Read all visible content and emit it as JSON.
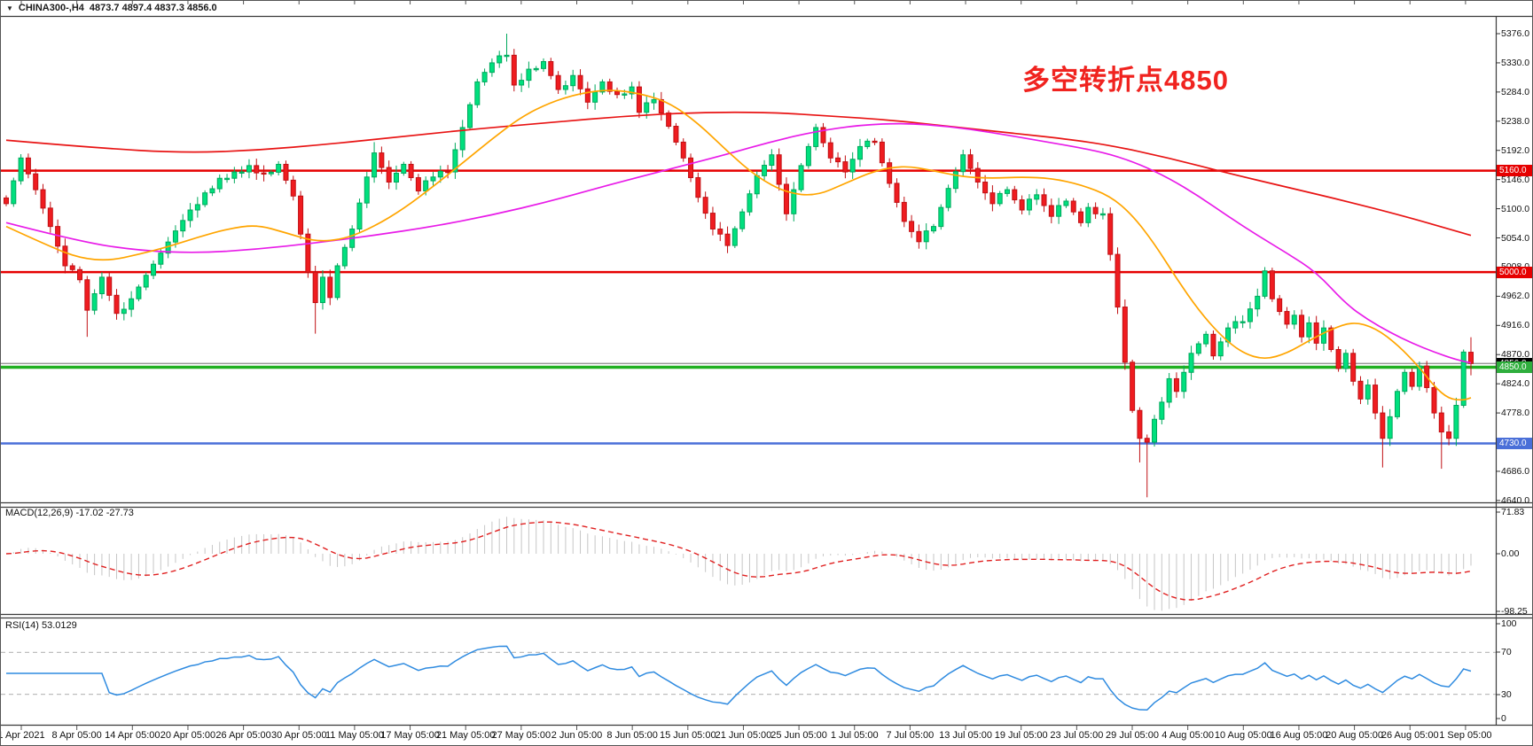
{
  "header": {
    "symbol": "CHINA300-,H4",
    "ohlc_text": "4873.7 4897.4 4837.3 4856.0",
    "dropdown_icon": "triangle-down"
  },
  "annotation": {
    "text": "多空转折点4850",
    "color": "#f0231f"
  },
  "colors": {
    "bull_fill": "#00e07e",
    "bull_border": "#00a85c",
    "bear_fill": "#ef1c20",
    "bear_border": "#c01014",
    "ma_red": "#e81414",
    "ma_magenta": "#e81ce8",
    "ma_orange": "#ffa500",
    "hist": "#c6c6c6",
    "macd_signal": "#e02020",
    "rsi_line": "#2f8be0",
    "level_dash": "#bdbdbd",
    "axis_text": "#111111",
    "border": "#3a3a3a",
    "bid_line": "#8a8a8a"
  },
  "price_axis": {
    "ticks": [
      "5376.0",
      "5330.0",
      "5284.0",
      "5238.0",
      "5192.0",
      "5146.0",
      "5100.0",
      "5054.0",
      "5008.0",
      "4962.0",
      "4916.0",
      "4870.0",
      "4824.0",
      "4778.0",
      "4732.0",
      "4686.0",
      "4640.0"
    ],
    "badges": [
      {
        "label": "5160.0",
        "price": 5160,
        "bg": "#e60000",
        "fg": "#ffffff"
      },
      {
        "label": "5000.0",
        "price": 5000,
        "bg": "#e60000",
        "fg": "#ffffff"
      },
      {
        "label": "4856.0",
        "price": 4856,
        "bg": "#000000",
        "fg": "#ffffff"
      },
      {
        "label": "4850.0",
        "price": 4850,
        "bg": "#2fae3d",
        "fg": "#ffffff"
      },
      {
        "label": "4730.0",
        "price": 4730,
        "bg": "#4a6fd8",
        "fg": "#ffffff"
      }
    ]
  },
  "hlines": [
    {
      "price": 5160,
      "color": "#e60000",
      "width": 2.5
    },
    {
      "price": 5000,
      "color": "#e60000",
      "width": 2.5
    },
    {
      "price": 4856,
      "color": "#8a8a8a",
      "width": 1.2
    },
    {
      "price": 4850,
      "color": "#21b021",
      "width": 3.5
    },
    {
      "price": 4730,
      "color": "#4a6fd8",
      "width": 2.5
    }
  ],
  "chart_data": {
    "type": "candlestick",
    "symbol": "CHINA300-",
    "timeframe": "H4",
    "title_annotation": "多空转折点4850",
    "current_ohlc": {
      "open": 4873.7,
      "high": 4897.4,
      "low": 4837.3,
      "close": 4856.0
    },
    "price_range": [
      4640,
      5376
    ],
    "price_tick_step": 46,
    "bar_count": 200,
    "close_anchors": [
      [
        0,
        5108
      ],
      [
        2,
        5180
      ],
      [
        4,
        5130
      ],
      [
        6,
        5072
      ],
      [
        8,
        5010
      ],
      [
        10,
        4988
      ],
      [
        11,
        4940
      ],
      [
        13,
        4992
      ],
      [
        15,
        4935
      ],
      [
        17,
        4958
      ],
      [
        19,
        4995
      ],
      [
        21,
        5030
      ],
      [
        23,
        5065
      ],
      [
        25,
        5098
      ],
      [
        27,
        5125
      ],
      [
        29,
        5148
      ],
      [
        31,
        5158
      ],
      [
        33,
        5168
      ],
      [
        35,
        5155
      ],
      [
        37,
        5170
      ],
      [
        39,
        5120
      ],
      [
        41,
        5000
      ],
      [
        42,
        4952
      ],
      [
        43,
        4992
      ],
      [
        44,
        4960
      ],
      [
        45,
        5010
      ],
      [
        47,
        5068
      ],
      [
        49,
        5150
      ],
      [
        50,
        5188
      ],
      [
        52,
        5142
      ],
      [
        54,
        5170
      ],
      [
        56,
        5128
      ],
      [
        58,
        5150
      ],
      [
        60,
        5158
      ],
      [
        62,
        5228
      ],
      [
        64,
        5300
      ],
      [
        66,
        5330
      ],
      [
        68,
        5342
      ],
      [
        69,
        5295
      ],
      [
        71,
        5320
      ],
      [
        73,
        5332
      ],
      [
        75,
        5288
      ],
      [
        77,
        5310
      ],
      [
        79,
        5268
      ],
      [
        81,
        5300
      ],
      [
        83,
        5280
      ],
      [
        85,
        5292
      ],
      [
        86,
        5252
      ],
      [
        88,
        5272
      ],
      [
        90,
        5230
      ],
      [
        92,
        5180
      ],
      [
        94,
        5118
      ],
      [
        96,
        5068
      ],
      [
        98,
        5042
      ],
      [
        100,
        5095
      ],
      [
        102,
        5152
      ],
      [
        104,
        5185
      ],
      [
        106,
        5092
      ],
      [
        108,
        5168
      ],
      [
        110,
        5228
      ],
      [
        112,
        5180
      ],
      [
        114,
        5158
      ],
      [
        116,
        5198
      ],
      [
        118,
        5205
      ],
      [
        120,
        5140
      ],
      [
        122,
        5080
      ],
      [
        124,
        5048
      ],
      [
        126,
        5072
      ],
      [
        128,
        5132
      ],
      [
        130,
        5185
      ],
      [
        132,
        5142
      ],
      [
        134,
        5108
      ],
      [
        136,
        5130
      ],
      [
        138,
        5098
      ],
      [
        140,
        5122
      ],
      [
        142,
        5088
      ],
      [
        144,
        5112
      ],
      [
        146,
        5078
      ],
      [
        147,
        5102
      ],
      [
        149,
        5092
      ],
      [
        150,
        5028
      ],
      [
        151,
        4945
      ],
      [
        152,
        4858
      ],
      [
        153,
        4782
      ],
      [
        154,
        4738
      ],
      [
        155,
        4732
      ],
      [
        156,
        4768
      ],
      [
        157,
        4795
      ],
      [
        158,
        4832
      ],
      [
        159,
        4812
      ],
      [
        161,
        4872
      ],
      [
        163,
        4902
      ],
      [
        164,
        4868
      ],
      [
        166,
        4912
      ],
      [
        168,
        4922
      ],
      [
        170,
        4962
      ],
      [
        171,
        5002
      ],
      [
        172,
        4958
      ],
      [
        173,
        4938
      ],
      [
        174,
        4918
      ],
      [
        175,
        4932
      ],
      [
        176,
        4898
      ],
      [
        177,
        4920
      ],
      [
        178,
        4888
      ],
      [
        179,
        4912
      ],
      [
        180,
        4878
      ],
      [
        181,
        4848
      ],
      [
        182,
        4872
      ],
      [
        183,
        4828
      ],
      [
        184,
        4800
      ],
      [
        185,
        4822
      ],
      [
        186,
        4778
      ],
      [
        187,
        4738
      ],
      [
        188,
        4772
      ],
      [
        189,
        4812
      ],
      [
        190,
        4842
      ],
      [
        191,
        4820
      ],
      [
        192,
        4852
      ],
      [
        193,
        4818
      ],
      [
        194,
        4778
      ],
      [
        195,
        4748
      ],
      [
        196,
        4738
      ],
      [
        197,
        4790
      ],
      [
        198,
        4874
      ],
      [
        199,
        4856
      ]
    ],
    "wick_overrides": {
      "11": {
        "low": 4898
      },
      "42": {
        "low": 4903
      },
      "50": {
        "high": 5205
      },
      "68": {
        "high": 5376
      },
      "154": {
        "low": 4700
      },
      "155": {
        "low": 4645
      },
      "171": {
        "high": 5008
      },
      "187": {
        "low": 4692
      },
      "195": {
        "low": 4690
      }
    },
    "last_bar": {
      "open": 4873.7,
      "high": 4897.4,
      "low": 4837.3,
      "close": 4856.0
    },
    "moving_averages": [
      {
        "name": "ma-slow",
        "color_key": "ma_red",
        "points": [
          [
            0,
            5208
          ],
          [
            12,
            5196
          ],
          [
            24,
            5188
          ],
          [
            34,
            5192
          ],
          [
            44,
            5202
          ],
          [
            54,
            5214
          ],
          [
            64,
            5226
          ],
          [
            74,
            5236
          ],
          [
            84,
            5246
          ],
          [
            94,
            5252
          ],
          [
            104,
            5252
          ],
          [
            112,
            5246
          ],
          [
            120,
            5240
          ],
          [
            128,
            5230
          ],
          [
            136,
            5220
          ],
          [
            144,
            5210
          ],
          [
            150,
            5200
          ],
          [
            158,
            5180
          ],
          [
            166,
            5156
          ],
          [
            174,
            5134
          ],
          [
            182,
            5112
          ],
          [
            190,
            5088
          ],
          [
            196,
            5068
          ],
          [
            199,
            5058
          ]
        ]
      },
      {
        "name": "ma-medium",
        "color_key": "ma_magenta",
        "points": [
          [
            0,
            5078
          ],
          [
            10,
            5048
          ],
          [
            18,
            5034
          ],
          [
            26,
            5030
          ],
          [
            34,
            5036
          ],
          [
            42,
            5046
          ],
          [
            50,
            5058
          ],
          [
            58,
            5072
          ],
          [
            66,
            5090
          ],
          [
            74,
            5112
          ],
          [
            82,
            5138
          ],
          [
            90,
            5162
          ],
          [
            98,
            5186
          ],
          [
            104,
            5206
          ],
          [
            110,
            5222
          ],
          [
            116,
            5232
          ],
          [
            122,
            5235
          ],
          [
            128,
            5230
          ],
          [
            134,
            5220
          ],
          [
            140,
            5208
          ],
          [
            146,
            5196
          ],
          [
            150,
            5186
          ],
          [
            154,
            5170
          ],
          [
            158,
            5148
          ],
          [
            162,
            5120
          ],
          [
            166,
            5088
          ],
          [
            170,
            5058
          ],
          [
            174,
            5030
          ],
          [
            178,
            5000
          ],
          [
            182,
            4950
          ],
          [
            185,
            4925
          ],
          [
            188,
            4905
          ],
          [
            191,
            4888
          ],
          [
            194,
            4874
          ],
          [
            197,
            4862
          ],
          [
            199,
            4857
          ]
        ]
      },
      {
        "name": "ma-fast",
        "color_key": "ma_orange",
        "points": [
          [
            0,
            5072
          ],
          [
            6,
            5040
          ],
          [
            10,
            5022
          ],
          [
            14,
            5018
          ],
          [
            18,
            5028
          ],
          [
            22,
            5040
          ],
          [
            26,
            5055
          ],
          [
            30,
            5068
          ],
          [
            34,
            5075
          ],
          [
            38,
            5062
          ],
          [
            42,
            5048
          ],
          [
            46,
            5052
          ],
          [
            50,
            5072
          ],
          [
            54,
            5100
          ],
          [
            58,
            5135
          ],
          [
            62,
            5172
          ],
          [
            66,
            5210
          ],
          [
            70,
            5245
          ],
          [
            74,
            5268
          ],
          [
            78,
            5282
          ],
          [
            82,
            5288
          ],
          [
            86,
            5282
          ],
          [
            90,
            5268
          ],
          [
            94,
            5235
          ],
          [
            98,
            5190
          ],
          [
            102,
            5150
          ],
          [
            106,
            5125
          ],
          [
            110,
            5120
          ],
          [
            114,
            5140
          ],
          [
            118,
            5160
          ],
          [
            122,
            5168
          ],
          [
            126,
            5160
          ],
          [
            130,
            5150
          ],
          [
            134,
            5148
          ],
          [
            138,
            5150
          ],
          [
            142,
            5148
          ],
          [
            146,
            5138
          ],
          [
            150,
            5120
          ],
          [
            153,
            5090
          ],
          [
            156,
            5045
          ],
          [
            159,
            4990
          ],
          [
            162,
            4940
          ],
          [
            165,
            4900
          ],
          [
            168,
            4872
          ],
          [
            171,
            4862
          ],
          [
            174,
            4872
          ],
          [
            177,
            4892
          ],
          [
            180,
            4910
          ],
          [
            183,
            4922
          ],
          [
            186,
            4912
          ],
          [
            189,
            4886
          ],
          [
            192,
            4850
          ],
          [
            194,
            4820
          ],
          [
            196,
            4800
          ],
          [
            198,
            4798
          ],
          [
            199,
            4802
          ]
        ]
      }
    ],
    "macd": {
      "params": "12,26,9",
      "value": -17.02,
      "signal_value": -27.73,
      "axis_labels": [
        "71.83",
        "0.00",
        "-98.25"
      ],
      "axis_values": [
        71.83,
        0,
        -98.25
      ]
    },
    "rsi": {
      "params": "14",
      "value": 53.0129,
      "levels": [
        70,
        30
      ],
      "axis_labels": [
        "100",
        "70",
        "30",
        "0"
      ],
      "axis_values": [
        100,
        70,
        30,
        0
      ]
    }
  },
  "macd_panel": {
    "label": "MACD(12,26,9) -17.02 -27.73"
  },
  "rsi_panel": {
    "label": "RSI(14) 53.0129"
  },
  "time_axis": {
    "labels": [
      "1 Apr 2021",
      "8 Apr 05:00",
      "14 Apr 05:00",
      "20 Apr 05:00",
      "26 Apr 05:00",
      "30 Apr 05:00",
      "11 May 05:00",
      "17 May 05:00",
      "21 May 05:00",
      "27 May 05:00",
      "2 Jun 05:00",
      "8 Jun 05:00",
      "15 Jun 05:00",
      "21 Jun 05:00",
      "25 Jun 05:00",
      "1 Jul 05:00",
      "7 Jul 05:00",
      "13 Jul 05:00",
      "19 Jul 05:00",
      "23 Jul 05:00",
      "29 Jul 05:00",
      "4 Aug 05:00",
      "10 Aug 05:00",
      "16 Aug 05:00",
      "20 Aug 05:00",
      "26 Aug 05:00",
      "1 Sep 05:00"
    ]
  }
}
